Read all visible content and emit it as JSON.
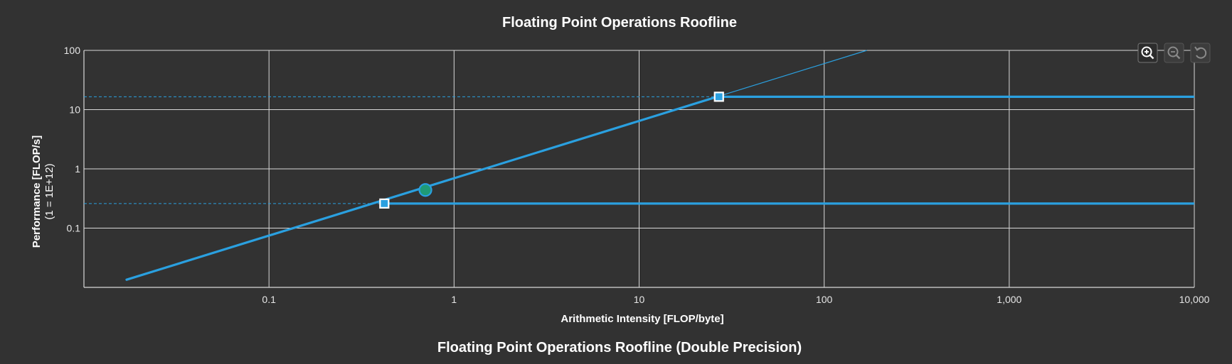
{
  "window": {
    "subtitle": "Floating Point Operations Roofline (Double Precision)"
  },
  "toolbar": {
    "zoom_in_icon": "zoom-in-icon",
    "zoom_out_icon": "zoom-out-icon",
    "reset_icon": "reset-icon"
  },
  "chart_data": {
    "type": "line",
    "title": "Floating Point Operations Roofline",
    "xlabel": "Arithmetic Intensity [FLOP/byte]",
    "ylabel_line1": "Performance [FLOP/s]",
    "ylabel_line2": "(1 = 1E+12)",
    "x_scale": "log",
    "y_scale": "log",
    "xlim": [
      0.01,
      10000
    ],
    "ylim": [
      0.01,
      100
    ],
    "x_ticks": [
      {
        "value": 0.1,
        "label": "0.1"
      },
      {
        "value": 1,
        "label": "1"
      },
      {
        "value": 10,
        "label": "10"
      },
      {
        "value": 100,
        "label": "100"
      },
      {
        "value": 1000,
        "label": "1,000"
      },
      {
        "value": 10000,
        "label": "10,000"
      }
    ],
    "y_ticks": [
      {
        "value": 0.1,
        "label": "0.1"
      },
      {
        "value": 1,
        "label": "1"
      },
      {
        "value": 10,
        "label": "10"
      },
      {
        "value": 100,
        "label": "100"
      }
    ],
    "grid": true,
    "colors": {
      "roof": "#2aa0e0",
      "grid": "#d8d8d8",
      "point_fill": "#1f9b77",
      "point_stroke": "#2aa0e0"
    },
    "memory_roof": {
      "points": [
        [
          0.0125,
          0.01
        ],
        [
          170,
          100
        ]
      ]
    },
    "compute_roofs": [
      {
        "peak": 0.26,
        "ridge": 0.42
      },
      {
        "peak": 16.5,
        "ridge": 27
      }
    ],
    "achieved_point": {
      "x": 0.7,
      "y": 0.44
    }
  }
}
